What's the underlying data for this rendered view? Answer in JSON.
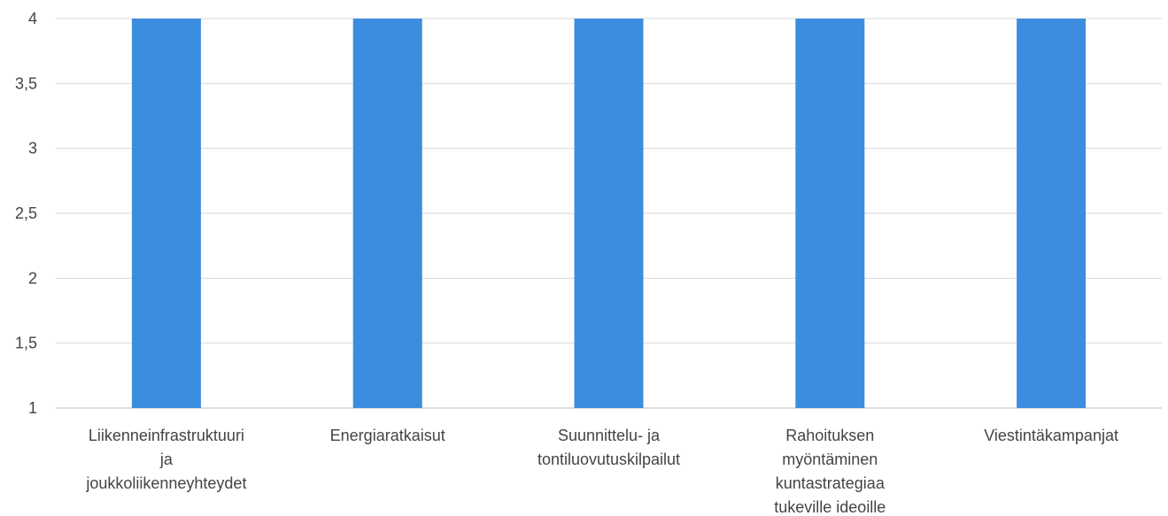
{
  "chart_data": {
    "type": "bar",
    "categories": [
      [
        "Liikenneinfrastruktuuri",
        "ja",
        "joukkoliikenneyhteydet"
      ],
      [
        "Energiaratkaisut"
      ],
      [
        "Suunnittelu- ja",
        "tontiluovutuskilpailut"
      ],
      [
        "Rahoituksen",
        "myöntäminen",
        "kuntastrategiaa",
        "tukeville ideoille"
      ],
      [
        "Viestintäkampanjat"
      ]
    ],
    "values": [
      4,
      4,
      4,
      4,
      4
    ],
    "ylim": [
      1,
      4
    ],
    "yticks": [
      "1",
      "1,5",
      "2",
      "2,5",
      "3",
      "3,5",
      "4"
    ],
    "ytick_values": [
      1,
      1.5,
      2,
      2.5,
      3,
      3.5,
      4
    ],
    "bar_color": "#3c8ddf",
    "grid": true
  }
}
